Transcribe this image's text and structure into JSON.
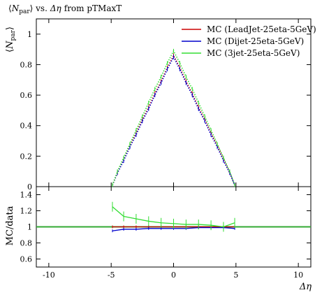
{
  "chart_data": [
    {
      "type": "scatter",
      "title": "⟨N_par⟩ vs. Δη from pTMaxT",
      "title_parts": {
        "N": "N",
        "sub": "par",
        "rest": "vs.",
        "eta": "Δη",
        "suffix": "from pTMaxT"
      },
      "ylabel": "⟨N_par⟩",
      "ylabel_parts": {
        "N": "N",
        "sub": "par"
      },
      "xlim": [
        -11,
        11
      ],
      "ylim": [
        0,
        1.1
      ],
      "yticks": [
        0,
        0.2,
        0.4,
        0.6,
        0.8,
        1
      ],
      "ytick_labels": [
        "0",
        "0.2",
        "0.4",
        "0.6",
        "0.8",
        "1"
      ],
      "legend_position": "top-right",
      "series": [
        {
          "name": "MC (LeadJet-25eta-5GeV)",
          "color": "#cc0000",
          "x": [
            -4.9,
            -4.5,
            -4.0,
            -3.5,
            -3.0,
            -2.5,
            -2.0,
            -1.5,
            -1.0,
            -0.5,
            0.0,
            0.5,
            1.0,
            1.5,
            2.0,
            2.5,
            3.0,
            3.5,
            4.0,
            4.5,
            4.9
          ],
          "y": [
            0.01,
            0.09,
            0.18,
            0.27,
            0.35,
            0.44,
            0.52,
            0.61,
            0.69,
            0.78,
            0.86,
            0.78,
            0.69,
            0.61,
            0.52,
            0.44,
            0.35,
            0.27,
            0.18,
            0.09,
            0.01
          ]
        },
        {
          "name": "MC (Dijet-25eta-5GeV)",
          "color": "#0000cc",
          "x": [
            -4.9,
            -4.5,
            -4.0,
            -3.5,
            -3.0,
            -2.5,
            -2.0,
            -1.5,
            -1.0,
            -0.5,
            0.0,
            0.5,
            1.0,
            1.5,
            2.0,
            2.5,
            3.0,
            3.5,
            4.0,
            4.5,
            4.9
          ],
          "y": [
            0.01,
            0.09,
            0.17,
            0.26,
            0.34,
            0.43,
            0.51,
            0.6,
            0.68,
            0.77,
            0.85,
            0.77,
            0.68,
            0.6,
            0.51,
            0.43,
            0.34,
            0.26,
            0.17,
            0.09,
            0.01
          ]
        },
        {
          "name": "MC (3jet-25eta-5GeV)",
          "color": "#33dd33",
          "x": [
            -4.9,
            -4.5,
            -4.0,
            -3.5,
            -3.0,
            -2.5,
            -2.0,
            -1.5,
            -1.0,
            -0.5,
            0.0,
            0.5,
            1.0,
            1.5,
            2.0,
            2.5,
            3.0,
            3.5,
            4.0,
            4.5,
            4.9
          ],
          "y": [
            0.01,
            0.1,
            0.19,
            0.28,
            0.37,
            0.46,
            0.55,
            0.64,
            0.72,
            0.81,
            0.89,
            0.81,
            0.72,
            0.64,
            0.55,
            0.46,
            0.37,
            0.28,
            0.19,
            0.1,
            0.01
          ]
        }
      ]
    },
    {
      "type": "line",
      "ylabel": "MC/data",
      "xlabel": "Δη",
      "xlim": [
        -11,
        11
      ],
      "ylim": [
        0.5,
        1.5
      ],
      "xticks": [
        -10,
        -5,
        0,
        5,
        10
      ],
      "xtick_labels": [
        "-10",
        "-5",
        "0",
        "5",
        "10"
      ],
      "yticks": [
        0.6,
        0.8,
        1,
        1.2,
        1.4
      ],
      "ytick_labels": [
        "0.6",
        "0.8",
        "1",
        "1.2",
        "1.4"
      ],
      "reference_line": 1,
      "series": [
        {
          "name": "MC (LeadJet-25eta-5GeV)",
          "color": "#cc0000",
          "x": [
            -4.9,
            -4.0,
            -3.0,
            -2.0,
            -1.0,
            0.0,
            1.0,
            2.0,
            3.0,
            4.0,
            4.9
          ],
          "y": [
            1.0,
            1.0,
            1.0,
            1.0,
            1.0,
            1.0,
            1.0,
            1.0,
            1.0,
            1.0,
            1.0
          ]
        },
        {
          "name": "MC (Dijet-25eta-5GeV)",
          "color": "#0000cc",
          "x": [
            -4.9,
            -4.0,
            -3.0,
            -2.0,
            -1.0,
            0.0,
            1.0,
            2.0,
            3.0,
            4.0,
            4.9
          ],
          "y": [
            0.95,
            0.97,
            0.97,
            0.98,
            0.98,
            0.98,
            0.98,
            0.99,
            0.99,
            0.99,
            0.98
          ]
        },
        {
          "name": "MC (3jet-25eta-5GeV)",
          "color": "#33dd33",
          "x": [
            -4.9,
            -4.0,
            -3.0,
            -2.0,
            -1.0,
            0.0,
            1.0,
            2.0,
            3.0,
            4.0,
            4.9
          ],
          "y": [
            1.25,
            1.13,
            1.1,
            1.07,
            1.05,
            1.04,
            1.03,
            1.03,
            1.02,
            1.0,
            1.05
          ]
        }
      ]
    }
  ]
}
